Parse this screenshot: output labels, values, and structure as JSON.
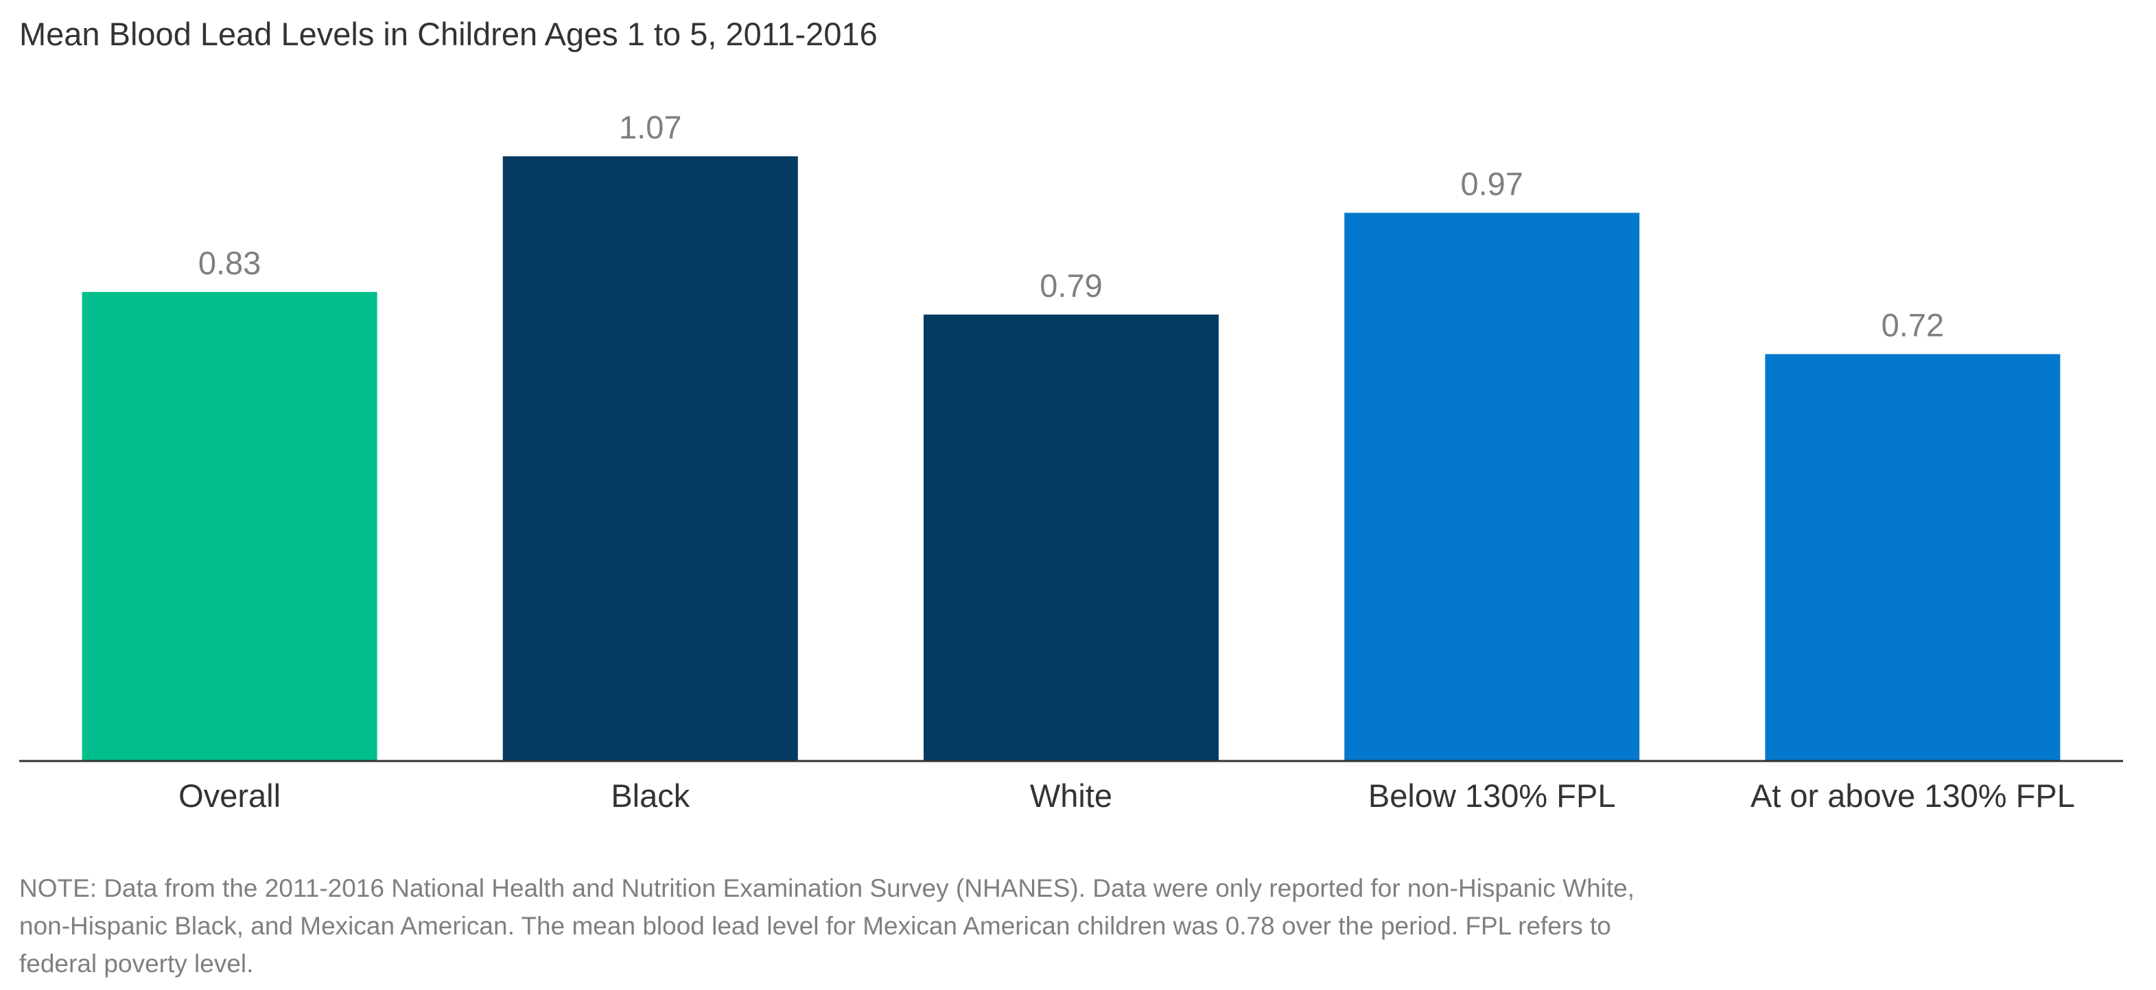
{
  "title": "Mean Blood Lead Levels in Children Ages 1 to 5, 2011-2016",
  "note": {
    "lines": [
      "NOTE: Data from the 2011-2016 National Health and Nutrition Examination Survey (NHANES). Data were only reported for non-Hispanic White,",
      "non-Hispanic Black, and Mexican American. The mean blood lead level for Mexican American children was 0.78 over the period. FPL refers to",
      "federal poverty level."
    ]
  },
  "chart_data": {
    "type": "bar",
    "title": "Mean Blood Lead Levels in Children Ages 1 to 5, 2011-2016",
    "xlabel": "",
    "ylabel": "",
    "categories": [
      "Overall",
      "Black",
      "White",
      "Below 130% FPL",
      "At or above 130% FPL"
    ],
    "values": [
      0.83,
      1.07,
      0.79,
      0.97,
      0.72
    ],
    "data_labels": [
      "0.83",
      "1.07",
      "0.79",
      "0.97",
      "0.72"
    ],
    "colors": [
      "#00BF8C",
      "#033B62",
      "#033B62",
      "#0478CC",
      "#0478CC"
    ],
    "ylim": [
      0,
      1.07
    ],
    "grid": false,
    "axis_color": "#333333",
    "label_color": "#7f7f7f"
  }
}
